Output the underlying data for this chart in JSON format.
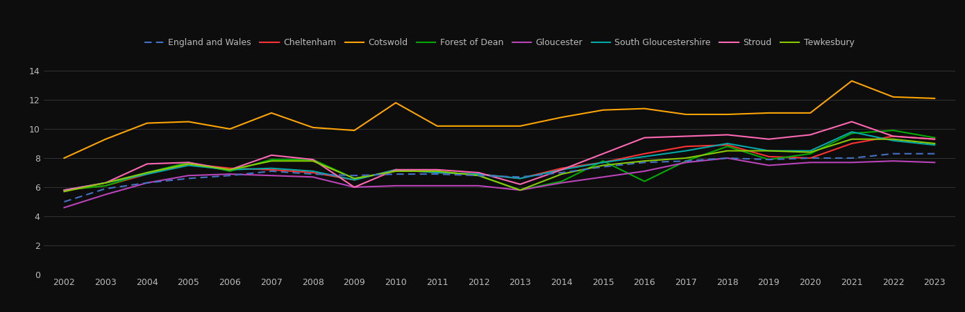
{
  "years": [
    2002,
    2003,
    2004,
    2005,
    2006,
    2007,
    2008,
    2009,
    2010,
    2011,
    2012,
    2013,
    2014,
    2015,
    2016,
    2017,
    2018,
    2019,
    2020,
    2021,
    2022,
    2023
  ],
  "england_wales": [
    5.0,
    5.9,
    6.3,
    6.6,
    6.8,
    7.1,
    6.9,
    6.8,
    6.9,
    6.9,
    6.8,
    6.7,
    7.0,
    7.4,
    7.7,
    7.8,
    8.0,
    7.9,
    8.0,
    8.0,
    8.3,
    8.3
  ],
  "cheltenham": [
    5.8,
    6.1,
    6.9,
    7.6,
    7.3,
    7.2,
    7.0,
    6.5,
    7.2,
    7.0,
    6.9,
    6.6,
    7.3,
    7.7,
    8.3,
    8.8,
    8.9,
    8.1,
    8.0,
    9.0,
    9.5,
    9.3
  ],
  "cotswold": [
    8.0,
    9.3,
    10.4,
    10.5,
    10.0,
    11.1,
    10.1,
    9.9,
    11.8,
    10.2,
    10.2,
    10.2,
    10.8,
    11.3,
    11.4,
    11.0,
    11.0,
    11.1,
    11.1,
    13.3,
    12.2,
    12.1
  ],
  "forest_of_dean": [
    5.8,
    6.1,
    7.0,
    7.7,
    7.1,
    7.9,
    7.9,
    6.6,
    7.1,
    7.1,
    6.8,
    5.8,
    6.4,
    7.8,
    6.4,
    7.8,
    8.8,
    7.9,
    8.3,
    9.7,
    9.9,
    9.4
  ],
  "gloucester": [
    4.6,
    5.5,
    6.3,
    6.8,
    6.9,
    6.8,
    6.7,
    6.0,
    6.1,
    6.1,
    6.1,
    5.8,
    6.3,
    6.7,
    7.1,
    7.7,
    8.0,
    7.5,
    7.7,
    7.7,
    7.8,
    7.7
  ],
  "south_gloucs": [
    5.8,
    6.3,
    6.9,
    7.5,
    7.2,
    7.3,
    7.1,
    6.5,
    7.2,
    7.0,
    6.9,
    6.6,
    7.2,
    7.7,
    8.1,
    8.5,
    9.0,
    8.5,
    8.5,
    9.8,
    9.2,
    8.9
  ],
  "stroud": [
    5.8,
    6.3,
    7.6,
    7.7,
    7.2,
    8.2,
    7.9,
    6.0,
    7.2,
    7.2,
    7.0,
    6.2,
    7.2,
    8.3,
    9.4,
    9.5,
    9.6,
    9.3,
    9.6,
    10.5,
    9.5,
    9.3
  ],
  "tewkesbury": [
    5.7,
    6.3,
    7.0,
    7.6,
    7.2,
    7.8,
    7.8,
    6.6,
    7.1,
    7.1,
    6.8,
    5.8,
    6.9,
    7.5,
    7.8,
    8.0,
    8.5,
    8.5,
    8.4,
    9.3,
    9.3,
    9.0
  ],
  "colors": {
    "england_wales": "#4472C4",
    "cheltenham": "#FF3333",
    "cotswold": "#FFA500",
    "forest_of_dean": "#00AA00",
    "gloucester": "#BB44BB",
    "south_gloucs": "#00AAAA",
    "stroud": "#FF69B4",
    "tewkesbury": "#88CC00"
  },
  "background_color": "#0d0d0d",
  "grid_color": "#333333",
  "text_color": "#BBBBBB",
  "ylim": [
    0,
    15
  ],
  "yticks": [
    0,
    2,
    4,
    6,
    8,
    10,
    12,
    14
  ]
}
